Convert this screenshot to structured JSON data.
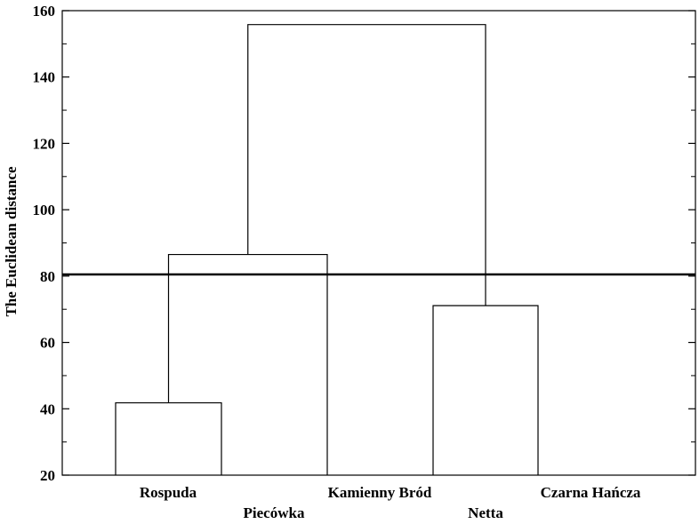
{
  "chart_data": {
    "type": "dendrogram",
    "ylabel": "The Euclidean distance",
    "ylim": [
      20,
      160
    ],
    "yticks": [
      20,
      40,
      60,
      80,
      100,
      120,
      140,
      160
    ],
    "leaves": [
      "Rospuda",
      "Piecówka",
      "Kamienny Bród",
      "Netta",
      "Czarna Hańcza"
    ],
    "merges": [
      {
        "members": [
          "Rospuda",
          "Piecówka"
        ],
        "height": 41.8
      },
      {
        "members": [
          "Rospuda+Piecówka",
          "Kamienny Bród"
        ],
        "height": 86.5
      },
      {
        "members": [
          "Netta",
          "Czarna Hańcza"
        ],
        "height": 71.1
      },
      {
        "members": [
          "Rospuda+Piecówka+Kamienny Bród",
          "Netta+Czarna Hańcza"
        ],
        "height": 155.8
      }
    ],
    "cut_line": 80.5,
    "grid": false
  }
}
